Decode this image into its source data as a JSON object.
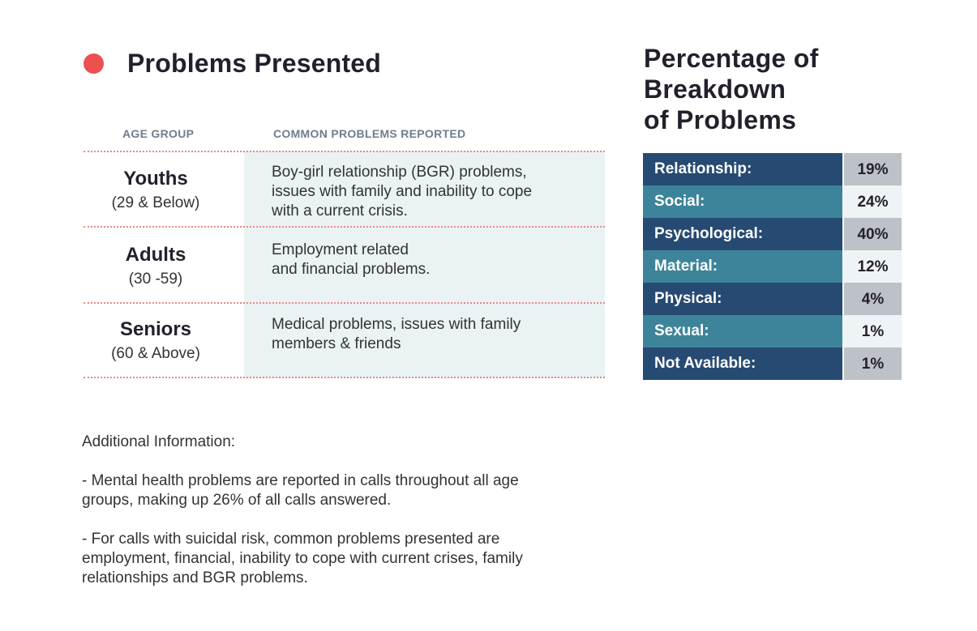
{
  "left": {
    "title": "Problems Presented",
    "columns": {
      "age": "AGE GROUP",
      "problems": "COMMON PROBLEMS REPORTED"
    },
    "rows": [
      {
        "name": "Youths",
        "range": "(29 & Below)",
        "problem_lines": [
          "Boy-girl relationship (BGR) problems,",
          "issues with family and inability to cope",
          "with a current crisis."
        ]
      },
      {
        "name": "Adults",
        "range": "(30 -59)",
        "problem_lines": [
          "Employment related",
          "and financial problems."
        ]
      },
      {
        "name": "Seniors",
        "range": "(60 & Above)",
        "problem_lines": [
          "Medical problems, issues with family",
          "members & friends"
        ]
      }
    ]
  },
  "info": {
    "heading": "Additional Information:",
    "point1_lines": [
      "- Mental health problems are reported in calls throughout all age",
      "groups, making up 26% of all calls answered."
    ],
    "point2_lines": [
      "- For calls with suicidal risk, common problems presented are",
      "employment, financial, inability to cope with current crises, family",
      "relationships and BGR problems."
    ]
  },
  "right": {
    "title_lines": [
      "Percentage of",
      "Breakdown",
      "of Problems"
    ],
    "rows": [
      {
        "label": "Relationship:",
        "value": "19%"
      },
      {
        "label": "Social:",
        "value": "24%"
      },
      {
        "label": "Psychological:",
        "value": "40%"
      },
      {
        "label": "Material:",
        "value": "12%"
      },
      {
        "label": "Physical:",
        "value": "4%"
      },
      {
        "label": "Sexual:",
        "value": "1%"
      },
      {
        "label": "Not Available:",
        "value": "1%"
      }
    ]
  },
  "colors": {
    "accent_dot": "#ec5050",
    "dark_row": "#264a72",
    "light_row": "#3d849a",
    "table_shade": "#eaf2f4",
    "divider": "#e58a8a"
  }
}
